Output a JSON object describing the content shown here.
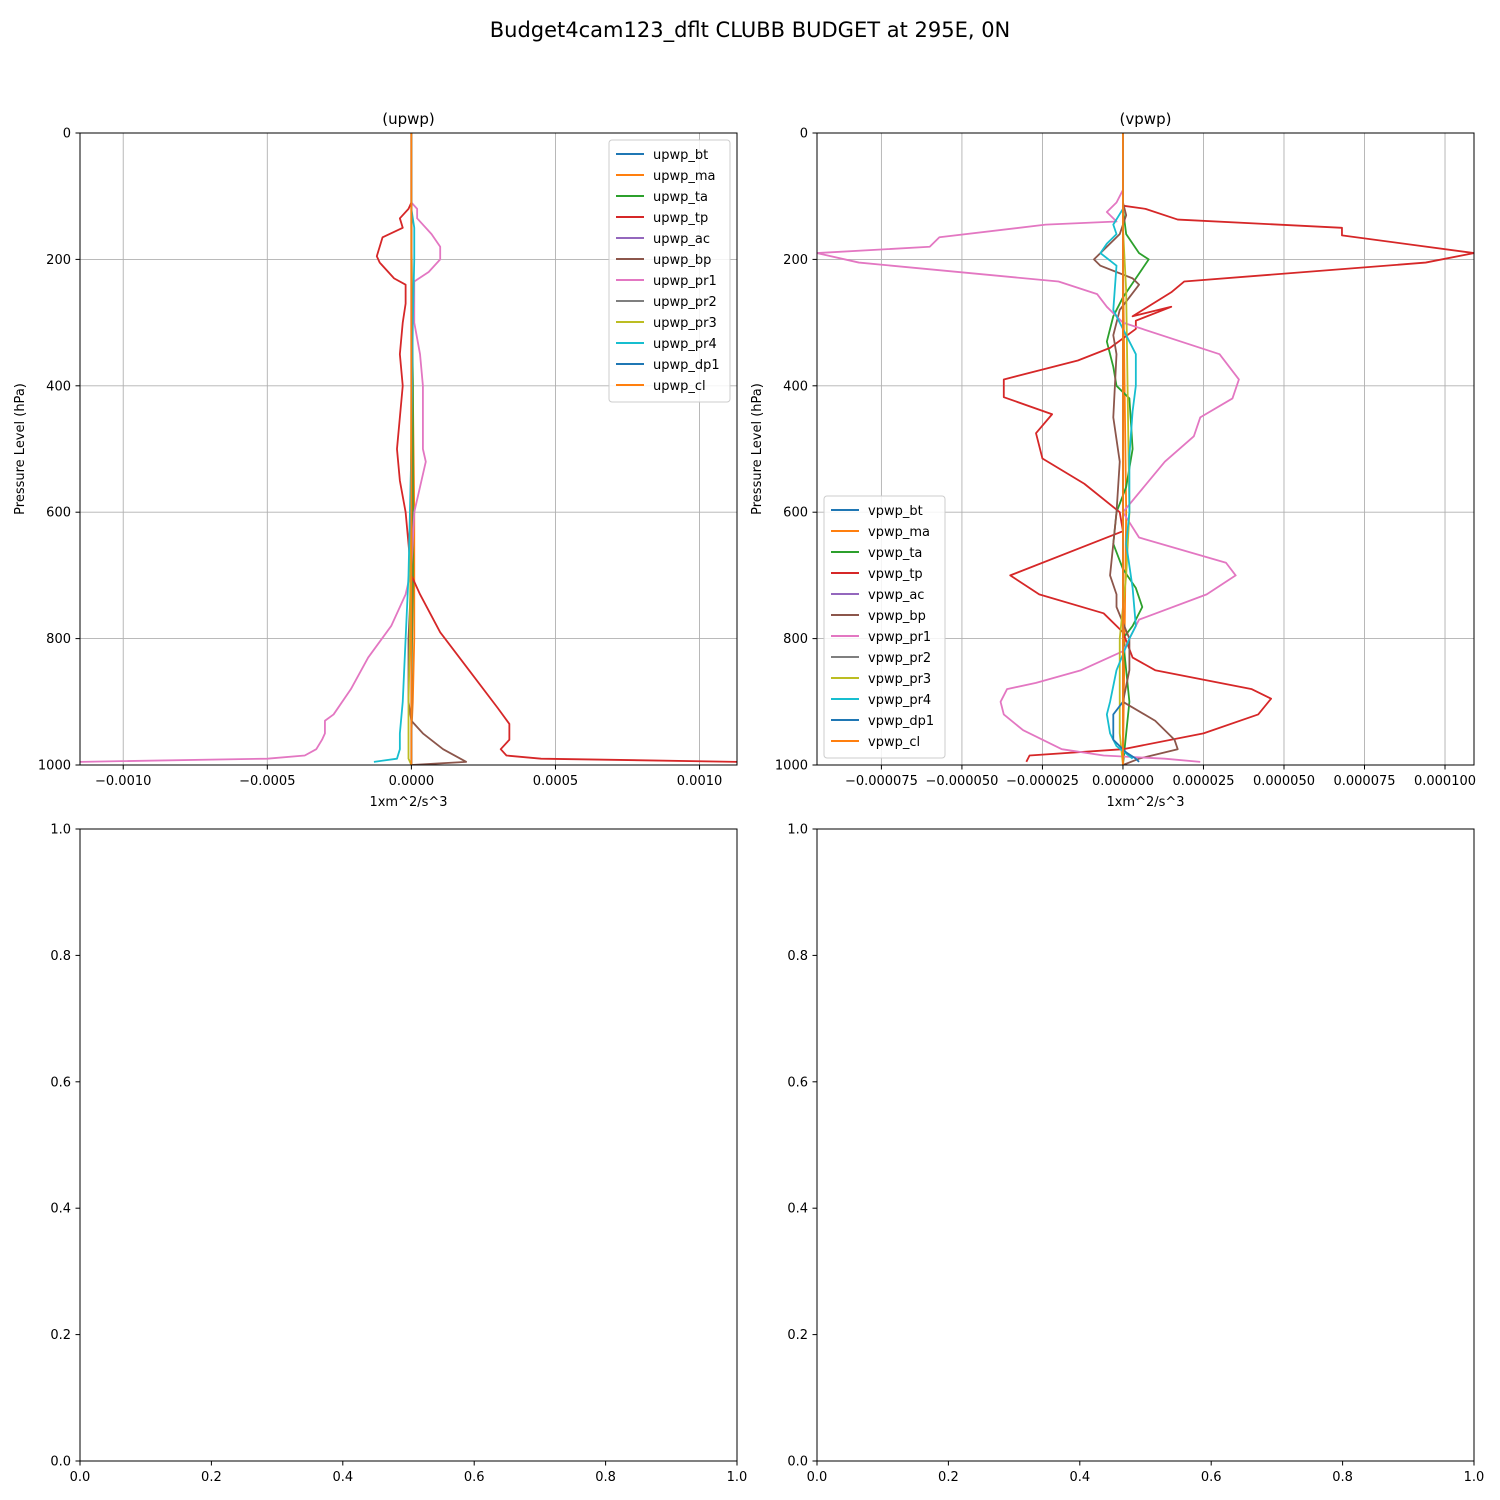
{
  "figure": {
    "suptitle": "Budget4cam123_dflt CLUBB BUDGET at 295E, 0N"
  },
  "colors": {
    "tab_blue": "#1f77b4",
    "tab_orange": "#ff7f0e",
    "tab_green": "#2ca02c",
    "tab_red": "#d62728",
    "tab_purple": "#9467bd",
    "tab_brown": "#8c564b",
    "tab_pink": "#e377c2",
    "tab_gray": "#7f7f7f",
    "tab_olive": "#bcbd22",
    "tab_cyan": "#17becf",
    "grid": "#b0b0b0"
  },
  "chart_data": [
    {
      "type": "line",
      "title": "(upwp)",
      "xlabel": "1xm^2/s^3",
      "ylabel": "Pressure Level (hPa)",
      "xlim": [
        -0.00115,
        0.00113
      ],
      "ylim": [
        1000,
        0
      ],
      "y_inverted": true,
      "grid": true,
      "legend_position": "upper right",
      "xticks": [
        -0.001,
        -0.0005,
        0,
        0.0005,
        0.001
      ],
      "xtick_labels": [
        "−0.0010",
        "−0.0005",
        "0.0000",
        "0.0005",
        "0.0010"
      ],
      "yticks": [
        0,
        200,
        400,
        600,
        800,
        1000
      ],
      "ytick_labels": [
        "0",
        "200",
        "400",
        "600",
        "800",
        "1000"
      ],
      "series": [
        {
          "name": "upwp_bt",
          "color": "#1f77b4",
          "x": [
            0,
            0,
            0,
            0,
            0,
            0
          ],
          "y": [
            0,
            200,
            400,
            600,
            800,
            1000
          ]
        },
        {
          "name": "upwp_ma",
          "color": "#ff7f0e",
          "x": [
            0,
            0,
            0,
            5e-06,
            1e-05,
            1e-05,
            5e-06,
            0,
            0
          ],
          "y": [
            0,
            100,
            200,
            400,
            600,
            800,
            900,
            950,
            1000
          ]
        },
        {
          "name": "upwp_ta",
          "color": "#2ca02c",
          "x": [
            0,
            0,
            5e-06,
            5e-06,
            0,
            0
          ],
          "y": [
            0,
            150,
            400,
            700,
            900,
            1000
          ]
        },
        {
          "name": "upwp_tp",
          "color": "#d62728",
          "x": [
            0,
            0,
            -1e-05,
            -4e-05,
            -3e-05,
            -0.0001,
            -0.00011,
            -0.00012,
            -0.00011,
            -6e-05,
            -2e-05,
            -2e-05,
            -3e-05,
            -4e-05,
            -3e-05,
            -4e-05,
            -5e-05,
            -4e-05,
            -2e-05,
            -1e-05,
            0,
            3e-05,
            0.0001,
            0.0002,
            0.0003,
            0.00034,
            0.00034,
            0.00031,
            0.00033,
            0.00045,
            0.00113
          ],
          "y": [
            0,
            110,
            120,
            135,
            150,
            165,
            180,
            195,
            205,
            230,
            240,
            270,
            300,
            350,
            400,
            450,
            500,
            550,
            600,
            650,
            700,
            730,
            790,
            850,
            910,
            935,
            960,
            975,
            985,
            990,
            995
          ]
        },
        {
          "name": "upwp_ac",
          "color": "#9467bd",
          "x": [
            0,
            0,
            0
          ],
          "y": [
            0,
            500,
            1000
          ]
        },
        {
          "name": "upwp_bp",
          "color": "#8c564b",
          "x": [
            0,
            0,
            -1e-05,
            -1e-05,
            0,
            4e-05,
            0.00011,
            0.00019,
            0
          ],
          "y": [
            0,
            700,
            800,
            900,
            930,
            950,
            975,
            995,
            1000
          ]
        },
        {
          "name": "upwp_pr1",
          "color": "#e377c2",
          "x": [
            0,
            0,
            2e-05,
            2e-05,
            7e-05,
            0.0001,
            0.0001,
            6e-05,
            1e-05,
            1e-05,
            3e-05,
            4e-05,
            4e-05,
            5e-05,
            3e-05,
            1e-05,
            0,
            -2e-05,
            -7e-05,
            -0.00015,
            -0.00021,
            -0.00027,
            -0.0003,
            -0.0003,
            -0.00031,
            -0.00033,
            -0.00037,
            -0.0005,
            -0.00115
          ],
          "y": [
            0,
            110,
            120,
            135,
            160,
            180,
            200,
            220,
            235,
            300,
            350,
            400,
            500,
            520,
            560,
            600,
            690,
            730,
            780,
            830,
            880,
            920,
            930,
            950,
            960,
            975,
            985,
            990,
            995
          ]
        },
        {
          "name": "upwp_pr2",
          "color": "#7f7f7f",
          "x": [
            0,
            0,
            0
          ],
          "y": [
            0,
            500,
            1000
          ]
        },
        {
          "name": "upwp_pr3",
          "color": "#bcbd22",
          "x": [
            0,
            0,
            -5e-06,
            -1e-05,
            -1e-05,
            -1e-05,
            0
          ],
          "y": [
            0,
            400,
            800,
            900,
            950,
            990,
            1000
          ]
        },
        {
          "name": "upwp_pr4",
          "color": "#17becf",
          "x": [
            0,
            0,
            1e-05,
            1e-05,
            5e-06,
            0,
            -1e-05,
            -2e-05,
            -3e-05,
            -4e-05,
            -4e-05,
            -5e-05,
            -0.00013
          ],
          "y": [
            0,
            120,
            150,
            200,
            300,
            500,
            700,
            800,
            900,
            950,
            975,
            990,
            995
          ]
        },
        {
          "name": "upwp_dp1",
          "color": "#1f77b4",
          "x": [
            0,
            0,
            0
          ],
          "y": [
            0,
            500,
            1000
          ]
        },
        {
          "name": "upwp_cl",
          "color": "#ff7f0e",
          "x": [
            0,
            0,
            0
          ],
          "y": [
            0,
            500,
            1000
          ]
        }
      ]
    },
    {
      "type": "line",
      "title": "(vpwp)",
      "xlabel": "1xm^2/s^3",
      "ylabel": "Pressure Level (hPa)",
      "xlim": [
        -9.5e-05,
        0.000109
      ],
      "ylim": [
        1000,
        0
      ],
      "y_inverted": true,
      "grid": true,
      "legend_position": "lower left",
      "xticks": [
        -7.5e-05,
        -5e-05,
        -2.5e-05,
        0,
        2.5e-05,
        5e-05,
        7.5e-05,
        0.0001
      ],
      "xtick_labels": [
        "−0.000075",
        "−0.000050",
        "−0.000025",
        "0.000000",
        "0.000025",
        "0.000050",
        "0.000075",
        "0.000100"
      ],
      "yticks": [
        0,
        200,
        400,
        600,
        800,
        1000
      ],
      "ytick_labels": [
        "0",
        "200",
        "400",
        "600",
        "800",
        "1000"
      ],
      "series": [
        {
          "name": "vpwp_bt",
          "color": "#1f77b4",
          "x": [
            0,
            0,
            0
          ],
          "y": [
            0,
            500,
            1000
          ]
        },
        {
          "name": "vpwp_ma",
          "color": "#ff7f0e",
          "x": [
            0,
            0,
            5e-07,
            1e-06,
            5e-07,
            0
          ],
          "y": [
            0,
            200,
            400,
            600,
            800,
            1000
          ]
        },
        {
          "name": "vpwp_ta",
          "color": "#2ca02c",
          "x": [
            0,
            0,
            1e-06,
            5e-06,
            8e-06,
            4e-06,
            0,
            -3e-06,
            -5e-06,
            -3e-06,
            -2e-06,
            2e-06,
            3e-06,
            1e-06,
            -2e-06,
            -3e-06,
            0,
            4e-06,
            6e-06,
            3e-06,
            0,
            1e-06,
            2e-06,
            1e-06,
            0
          ],
          "y": [
            0,
            120,
            160,
            190,
            200,
            230,
            260,
            290,
            330,
            370,
            400,
            420,
            500,
            560,
            600,
            650,
            690,
            720,
            750,
            780,
            800,
            850,
            900,
            950,
            1000
          ]
        },
        {
          "name": "vpwp_tp",
          "color": "#d62728",
          "x": [
            0,
            0,
            7e-06,
            1.7e-05,
            6.8e-05,
            6.8e-05,
            0.000109,
            9.4e-05,
            1.9e-05,
            1.5e-05,
            3e-06,
            1.5e-05,
            4e-06,
            4e-06,
            -4e-06,
            -1.4e-05,
            -3.7e-05,
            -3.7e-05,
            -2.2e-05,
            -2.7e-05,
            -2.5e-05,
            -1.2e-05,
            -1e-06,
            0,
            -3.5e-05,
            -2.6e-05,
            -6e-06,
            0,
            3e-06,
            1e-05,
            4e-05,
            4.6e-05,
            4.2e-05,
            2.5e-05,
            0,
            -2.9e-05,
            -3e-05
          ],
          "y": [
            0,
            115,
            120,
            137,
            150,
            162,
            190,
            205,
            235,
            252,
            290,
            275,
            297,
            310,
            340,
            360,
            390,
            418,
            445,
            475,
            515,
            555,
            600,
            630,
            700,
            730,
            760,
            790,
            830,
            850,
            880,
            895,
            920,
            950,
            975,
            985,
            995
          ]
        },
        {
          "name": "vpwp_ac",
          "color": "#9467bd",
          "x": [
            0,
            0,
            0
          ],
          "y": [
            0,
            500,
            1000
          ]
        },
        {
          "name": "vpwp_bp",
          "color": "#8c564b",
          "x": [
            0,
            0,
            1e-06,
            -1e-06,
            -9e-06,
            -7e-06,
            3e-06,
            5e-06,
            -1e-06,
            -3e-06,
            -2e-06,
            -3e-06,
            -1e-06,
            -2e-06,
            -4e-06,
            -2e-06,
            -2e-06,
            2e-06,
            2e-06,
            0,
            1e-05,
            1.6e-05,
            1.7e-05,
            5e-06,
            0
          ],
          "y": [
            0,
            110,
            130,
            160,
            200,
            210,
            230,
            240,
            280,
            320,
            350,
            450,
            520,
            600,
            700,
            730,
            750,
            800,
            850,
            900,
            930,
            960,
            975,
            990,
            1000
          ]
        },
        {
          "name": "vpwp_pr1",
          "color": "#e377c2",
          "x": [
            0,
            0,
            -1e-06,
            -2e-06,
            -5e-06,
            -2e-06,
            -2.4e-05,
            -5.7e-05,
            -6e-05,
            -9.5e-05,
            -8.2e-05,
            -2e-05,
            -8e-06,
            -5e-06,
            0,
            3e-05,
            3.6e-05,
            3.4e-05,
            2.4e-05,
            2.2e-05,
            1.3e-05,
            0,
            5e-06,
            3.2e-05,
            3.5e-05,
            2.6e-05,
            5e-06,
            0,
            -1.3e-05,
            -2.7e-05,
            -3.6e-05,
            -3.8e-05,
            -3.7e-05,
            -3.1e-05,
            -1.9e-05,
            -6e-06,
            1.3e-05,
            2.4e-05
          ],
          "y": [
            0,
            90,
            100,
            110,
            125,
            140,
            145,
            165,
            180,
            190,
            205,
            235,
            255,
            275,
            300,
            350,
            390,
            420,
            450,
            480,
            520,
            600,
            640,
            680,
            700,
            730,
            770,
            820,
            850,
            870,
            880,
            900,
            920,
            945,
            975,
            985,
            990,
            995
          ]
        },
        {
          "name": "vpwp_pr2",
          "color": "#7f7f7f",
          "x": [
            0,
            0,
            0
          ],
          "y": [
            0,
            500,
            1000
          ]
        },
        {
          "name": "vpwp_pr3",
          "color": "#bcbd22",
          "x": [
            0,
            0,
            1e-06,
            2e-06,
            1e-06,
            -1e-06,
            -1e-06,
            -1e-06,
            0
          ],
          "y": [
            0,
            150,
            250,
            600,
            700,
            800,
            900,
            950,
            1000
          ]
        },
        {
          "name": "vpwp_pr4",
          "color": "#17becf",
          "x": [
            0,
            0,
            -3e-06,
            -2e-06,
            -5e-06,
            -7e-06,
            -2e-06,
            -3e-06,
            2e-06,
            4e-06,
            4e-06,
            3e-06,
            2e-06,
            2e-06,
            1e-06,
            3e-06,
            4e-06,
            2e-06,
            -2e-06,
            -4e-06,
            -5e-06,
            -4e-06,
            -2e-06,
            3e-06
          ],
          "y": [
            0,
            120,
            145,
            160,
            175,
            190,
            210,
            280,
            330,
            350,
            400,
            440,
            510,
            600,
            650,
            720,
            780,
            800,
            850,
            900,
            920,
            950,
            970,
            990
          ]
        },
        {
          "name": "vpwp_dp1",
          "color": "#1f77b4",
          "x": [
            0,
            0,
            0,
            -3e-06,
            -3e-06,
            1e-06,
            4e-06,
            5e-06
          ],
          "y": [
            0,
            500,
            900,
            920,
            960,
            980,
            990,
            995
          ]
        },
        {
          "name": "vpwp_cl",
          "color": "#ff7f0e",
          "x": [
            0,
            0,
            0
          ],
          "y": [
            0,
            500,
            1000
          ]
        }
      ]
    },
    {
      "type": "line",
      "xlim": [
        0,
        1
      ],
      "ylim": [
        0,
        1
      ],
      "grid": false,
      "empty": true,
      "xticks": [
        0,
        0.2,
        0.4,
        0.6,
        0.8,
        1
      ],
      "xtick_labels": [
        "0.0",
        "0.2",
        "0.4",
        "0.6",
        "0.8",
        "1.0"
      ],
      "yticks": [
        0,
        0.2,
        0.4,
        0.6,
        0.8,
        1
      ],
      "ytick_labels": [
        "0.0",
        "0.2",
        "0.4",
        "0.6",
        "0.8",
        "1.0"
      ],
      "series": []
    },
    {
      "type": "line",
      "xlim": [
        0,
        1
      ],
      "ylim": [
        0,
        1
      ],
      "grid": false,
      "empty": true,
      "xticks": [
        0,
        0.2,
        0.4,
        0.6,
        0.8,
        1
      ],
      "xtick_labels": [
        "0.0",
        "0.2",
        "0.4",
        "0.6",
        "0.8",
        "1.0"
      ],
      "yticks": [
        0,
        0.2,
        0.4,
        0.6,
        0.8,
        1
      ],
      "ytick_labels": [
        "0.0",
        "0.2",
        "0.4",
        "0.6",
        "0.8",
        "1.0"
      ],
      "series": []
    }
  ]
}
